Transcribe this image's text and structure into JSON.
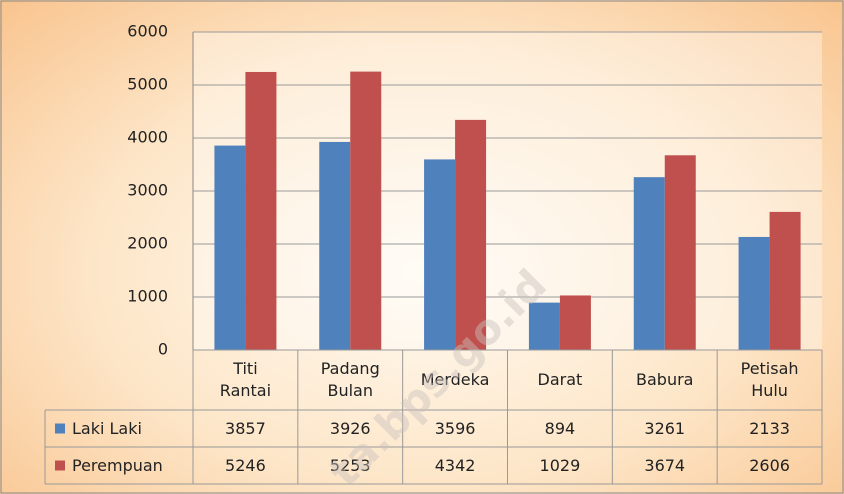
{
  "chart_data": {
    "type": "bar",
    "categories": [
      "Titi Rantai",
      "Padang Bulan",
      "Merdeka",
      "Darat",
      "Babura",
      "Petisah Hulu"
    ],
    "series": [
      {
        "name": "Laki Laki",
        "color": "#4f81bd",
        "values": [
          3857,
          3926,
          3596,
          894,
          3261,
          2133
        ]
      },
      {
        "name": "Perempuan",
        "color": "#c0504d",
        "values": [
          5246,
          5253,
          4342,
          1029,
          3674,
          2606
        ]
      }
    ],
    "ylim": [
      0,
      6000
    ],
    "yticks": [
      0,
      1000,
      2000,
      3000,
      4000,
      5000,
      6000
    ],
    "grid": true,
    "legend": "table",
    "watermark": "ta.bps.go.id"
  }
}
